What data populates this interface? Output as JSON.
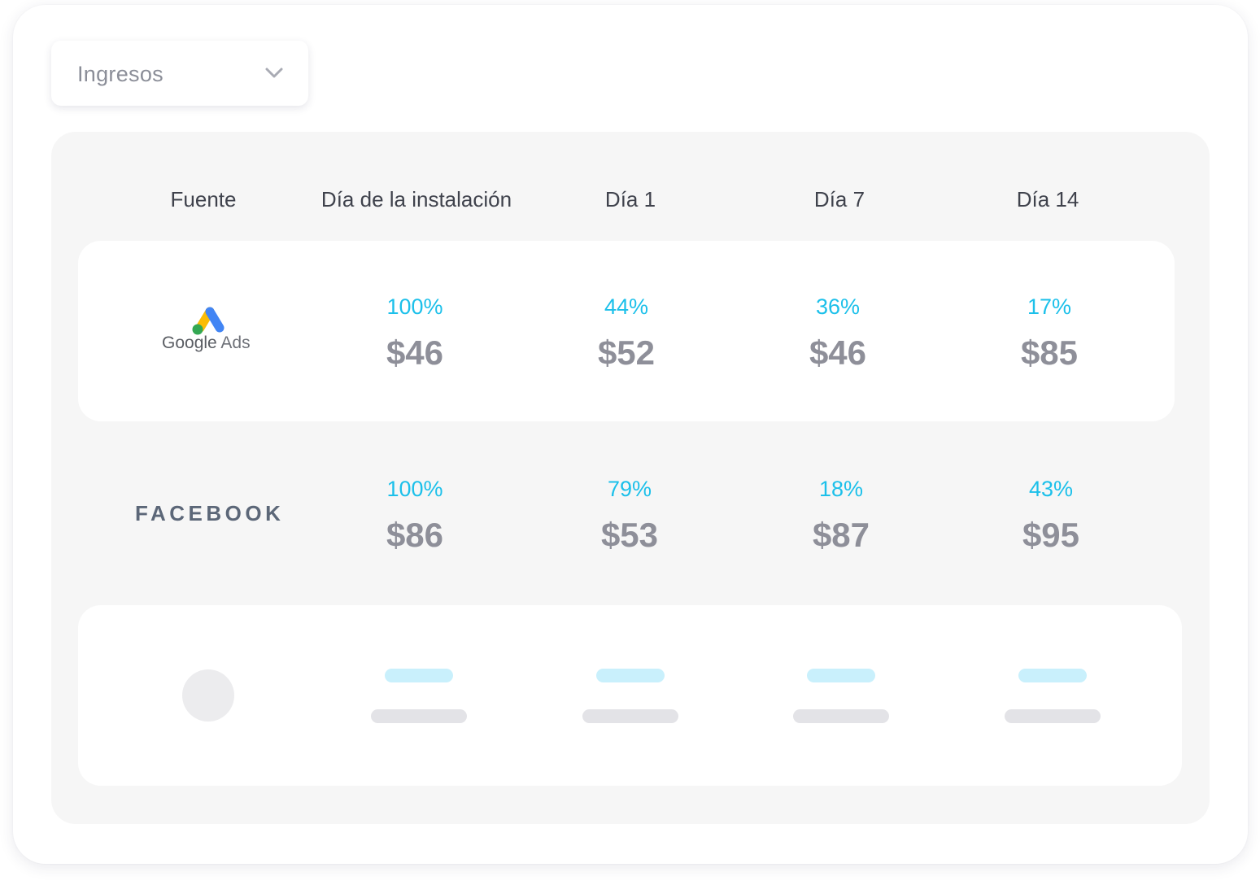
{
  "dropdown": {
    "selected": "Ingresos"
  },
  "table": {
    "headers": [
      "Fuente",
      "Día de la instalación",
      "Día 1",
      "Día 7",
      "Día 14"
    ],
    "rows": [
      {
        "source": "Google Ads",
        "source_brand": "Google",
        "source_suffix": "Ads",
        "cells": [
          {
            "pct": "100%",
            "value": "$46"
          },
          {
            "pct": "44%",
            "value": "$52"
          },
          {
            "pct": "36%",
            "value": "$46"
          },
          {
            "pct": "17%",
            "value": "$85"
          }
        ]
      },
      {
        "source": "FACEBOOK",
        "cells": [
          {
            "pct": "100%",
            "value": "$86"
          },
          {
            "pct": "79%",
            "value": "$53"
          },
          {
            "pct": "18%",
            "value": "$87"
          },
          {
            "pct": "43%",
            "value": "$95"
          }
        ]
      }
    ]
  },
  "colors": {
    "percent": "#1cc0ea",
    "value": "#8e8f99",
    "panel_bg": "#f6f6f6",
    "skeleton_blue": "#c9f0fc",
    "skeleton_gray": "#e3e3e7"
  },
  "icons": {
    "dropdown": "chevron-down-icon",
    "google_ads": "google-ads-logo",
    "placeholder": "skeleton-avatar"
  }
}
